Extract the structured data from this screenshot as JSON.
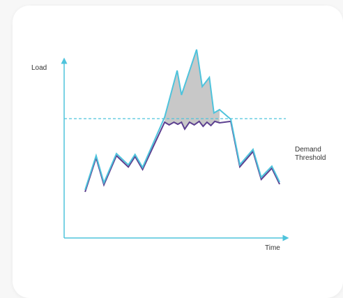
{
  "chart_data": {
    "type": "line",
    "title": "",
    "xlabel": "Time",
    "ylabel": "Load",
    "threshold_label_lines": [
      "Demand",
      "Threshold"
    ],
    "threshold_value": 0.57,
    "ylim": [
      0,
      1
    ],
    "xlim": [
      0,
      1
    ],
    "grid": false,
    "series": [
      {
        "color": "#4ec3dc",
        "role": "demand",
        "x": [
          0.097,
          0.148,
          0.184,
          0.242,
          0.297,
          0.328,
          0.363,
          0.465,
          0.523,
          0.543,
          0.613,
          0.639,
          0.672,
          0.693,
          0.719,
          0.771,
          0.813,
          0.874,
          0.912,
          0.961,
          0.997
        ],
        "y": [
          0.23,
          0.393,
          0.264,
          0.403,
          0.349,
          0.399,
          0.337,
          0.577,
          0.8,
          0.683,
          0.9,
          0.723,
          0.767,
          0.597,
          0.613,
          0.567,
          0.35,
          0.423,
          0.29,
          0.343,
          0.267
        ]
      },
      {
        "color": "#5c3f8f",
        "role": "capped-load",
        "x": [
          0.097,
          0.148,
          0.184,
          0.242,
          0.297,
          0.328,
          0.363,
          0.465,
          0.486,
          0.508,
          0.526,
          0.543,
          0.558,
          0.58,
          0.602,
          0.625,
          0.643,
          0.661,
          0.679,
          0.697,
          0.719,
          0.771,
          0.813,
          0.874,
          0.912,
          0.961,
          0.997
        ],
        "y": [
          0.22,
          0.383,
          0.254,
          0.393,
          0.339,
          0.389,
          0.327,
          0.553,
          0.54,
          0.553,
          0.543,
          0.553,
          0.52,
          0.553,
          0.54,
          0.557,
          0.533,
          0.553,
          0.537,
          0.557,
          0.55,
          0.557,
          0.34,
          0.413,
          0.28,
          0.333,
          0.257
        ]
      }
    ],
    "shaded_region": {
      "color": "#c8c8c8",
      "description": "demand above threshold"
    },
    "axis_color": "#4ec3dc",
    "threshold_color": "#4ec3dc"
  }
}
